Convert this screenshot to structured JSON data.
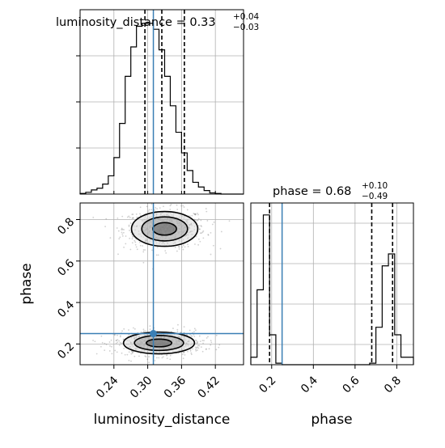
{
  "chart_data": {
    "type": "corner",
    "truth": {
      "luminosity_distance": 0.31,
      "phase": 0.25,
      "color": "#3a7fb5"
    },
    "marginals": [
      {
        "parameter": "luminosity_distance",
        "title_prefix": "luminosity_distance = 0.33",
        "title_plus": "+0.04",
        "title_minus": "−0.03",
        "quantiles": [
          0.295,
          0.325,
          0.365
        ],
        "bin_edges": [
          0.18,
          0.19,
          0.2,
          0.21,
          0.22,
          0.23,
          0.24,
          0.25,
          0.26,
          0.27,
          0.28,
          0.29,
          0.3,
          0.31,
          0.32,
          0.33,
          0.34,
          0.35,
          0.36,
          0.37,
          0.38,
          0.39,
          0.4,
          0.41,
          0.42,
          0.43,
          0.44,
          0.45,
          0.46,
          0.47
        ],
        "counts": [
          1,
          3,
          7,
          10,
          17,
          31,
          62,
          120,
          200,
          250,
          285,
          290,
          290,
          280,
          245,
          200,
          150,
          105,
          70,
          40,
          20,
          12,
          6,
          2,
          1,
          0,
          0,
          0,
          0
        ],
        "xlim": [
          0.18,
          0.47
        ]
      },
      {
        "parameter": "phase",
        "title_prefix": "phase = 0.68",
        "title_plus": "+0.10",
        "title_minus": "−0.49",
        "quantiles": [
          0.19,
          0.68,
          0.78
        ],
        "bin_edges": [
          0.1,
          0.13,
          0.16,
          0.19,
          0.22,
          0.25,
          0.28,
          0.31,
          0.34,
          0.37,
          0.4,
          0.43,
          0.46,
          0.49,
          0.52,
          0.55,
          0.58,
          0.61,
          0.64,
          0.67,
          0.7,
          0.73,
          0.76,
          0.79,
          0.82,
          0.85,
          0.88
        ],
        "counts": [
          5,
          50,
          100,
          20,
          1,
          0,
          0,
          0,
          0,
          0,
          0,
          0,
          0,
          0,
          0,
          0,
          0,
          0,
          0,
          1,
          25,
          66,
          74,
          20,
          5,
          5
        ],
        "xlim": [
          0.1,
          0.88
        ]
      }
    ],
    "joint": {
      "x_parameter": "luminosity_distance",
      "y_parameter": "phase",
      "modes": [
        {
          "x_center": 0.33,
          "y_center": 0.755,
          "x_sigma": 0.028,
          "y_sigma": 0.04
        },
        {
          "x_center": 0.32,
          "y_center": 0.205,
          "x_sigma": 0.03,
          "y_sigma": 0.025
        }
      ],
      "levels": [
        0.39,
        0.86,
        0.99
      ]
    },
    "axes": {
      "luminosity_distance": {
        "label": "luminosity_distance",
        "ticks": [
          "0.24",
          "0.30",
          "0.36",
          "0.42"
        ],
        "range": [
          0.18,
          0.47
        ]
      },
      "phase": {
        "label": "phase",
        "ticks": [
          "0.2",
          "0.4",
          "0.6",
          "0.8"
        ],
        "range": [
          0.1,
          0.88
        ]
      }
    },
    "grid": true
  }
}
